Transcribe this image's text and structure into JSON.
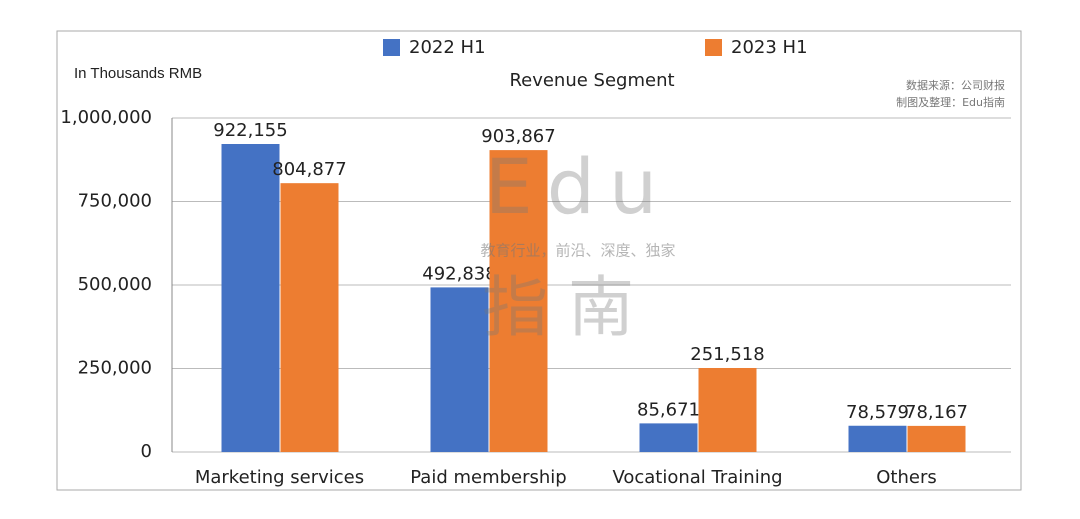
{
  "chart_data": {
    "type": "bar",
    "title": "Revenue Segment",
    "y_axis_label": "In Thousands RMB",
    "notes": [
      "数据来源：公司财报",
      "制图及整理：Edu指南"
    ],
    "watermark": {
      "top": "Edu",
      "middle": "教育行业，前沿、深度、独家",
      "bottom": "指南"
    },
    "categories": [
      "Marketing services",
      "Paid membership",
      "Vocational Training",
      "Others"
    ],
    "series": [
      {
        "name": "2022 H1",
        "color": "#4472c4",
        "values": [
          922155,
          492838,
          85671,
          78579
        ],
        "value_labels": [
          "922,155",
          "492,838",
          "85,671",
          "78,579"
        ]
      },
      {
        "name": "2023 H1",
        "color": "#ed7d31",
        "values": [
          804877,
          903867,
          251518,
          78167
        ],
        "value_labels": [
          "804,877",
          "903,867",
          "251,518",
          "78,167"
        ]
      }
    ],
    "ylim": [
      0,
      1000000
    ],
    "yticks": [
      0,
      {
        "value": 250000,
        "label": "250,000"
      },
      {
        "value": 500000,
        "label": "500,000"
      },
      {
        "value": 750000,
        "label": "750,000"
      },
      {
        "value": 1000000,
        "label": "1,000,000"
      }
    ],
    "grid": true,
    "legend": "top"
  }
}
